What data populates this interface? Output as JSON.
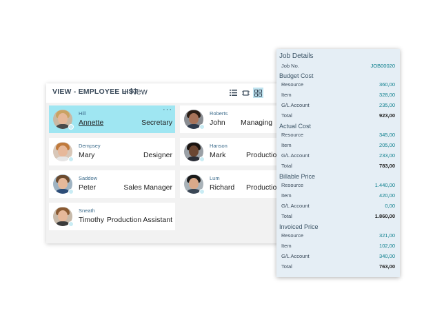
{
  "list": {
    "title": "VIEW - EMPLOYEE LIST",
    "new_label": "New",
    "more_label": "···",
    "employees": [
      {
        "last": "Hill",
        "first": "Annette",
        "job": "Secretary"
      },
      {
        "last": "Roberts",
        "first": "John",
        "job": "Managing"
      },
      {
        "last": "Dempsey",
        "first": "Mary",
        "job": "Designer"
      },
      {
        "last": "Hanson",
        "first": "Mark",
        "job": "Production"
      },
      {
        "last": "Saddow",
        "first": "Peter",
        "job": "Sales Manager"
      },
      {
        "last": "Lum",
        "first": "Richard",
        "job": "Production"
      },
      {
        "last": "Sneath",
        "first": "Timothy",
        "job": "Production Assistant"
      }
    ]
  },
  "details": {
    "title": "Job Details",
    "job_no_label": "Job No.",
    "job_no": "JOB00020",
    "budget": {
      "title": "Budget Cost",
      "resource_label": "Resource",
      "resource": "360,00",
      "item_label": "Item",
      "item": "328,00",
      "gl_label": "G/L Account",
      "gl": "235,00",
      "total_label": "Total",
      "total": "923,00"
    },
    "actual": {
      "title": "Actual Cost",
      "resource_label": "Resource",
      "resource": "345,00",
      "item_label": "Item",
      "item": "205,00",
      "gl_label": "G/L Account",
      "gl": "233,00",
      "total_label": "Total",
      "total": "783,00"
    },
    "billable": {
      "title": "Billable Price",
      "resource_label": "Resource",
      "resource": "1.440,00",
      "item_label": "Item",
      "item": "420,00",
      "gl_label": "G/L Account",
      "gl": "0,00",
      "total_label": "Total",
      "total": "1.860,00"
    },
    "invoiced": {
      "title": "Invoiced Price",
      "resource_label": "Resource",
      "resource": "321,00",
      "item_label": "Item",
      "item": "102,00",
      "gl_label": "G/L Account",
      "gl": "340,00",
      "total_label": "Total",
      "total": "763,00"
    }
  },
  "colors": {
    "accent": "#0a7e8c",
    "selected_card": "#9fe6f2",
    "panel_bg": "#e5eef5"
  }
}
